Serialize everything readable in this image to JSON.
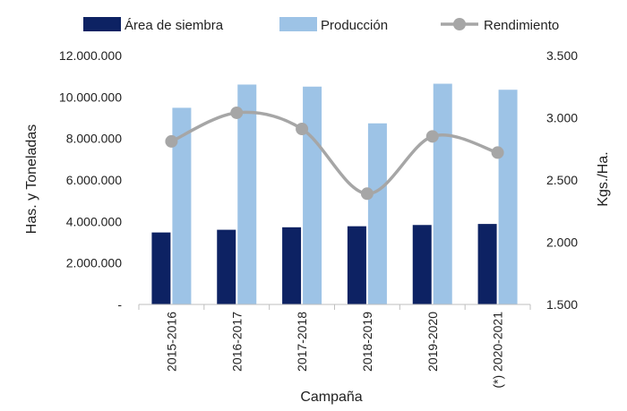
{
  "chart_data": {
    "type": "bar+line",
    "categories": [
      "2015-2016",
      "2016-2017",
      "2017-2018",
      "2018-2019",
      "2019-2020",
      "(*) 2020-2021"
    ],
    "series": [
      {
        "name": "Área de siembra",
        "kind": "bar",
        "axis": "left",
        "color": "#0d2263",
        "values": [
          3470000,
          3600000,
          3720000,
          3770000,
          3830000,
          3880000
        ]
      },
      {
        "name": "Producción",
        "kind": "bar",
        "axis": "left",
        "color": "#9dc3e6",
        "values": [
          9480000,
          10600000,
          10500000,
          8730000,
          10640000,
          10350000
        ]
      },
      {
        "name": "Rendimiento",
        "kind": "line",
        "axis": "right",
        "color": "#a6a6a6",
        "values": [
          2810,
          3040,
          2910,
          2390,
          2850,
          2720
        ]
      }
    ],
    "xlabel": "Campaña",
    "ylabel": "Has. y Toneladas",
    "y2label": "Kgs./Ha.",
    "ylim": [
      0,
      12000000
    ],
    "y2lim": [
      1500,
      3500
    ],
    "yticks": [
      0,
      2000000,
      4000000,
      6000000,
      8000000,
      10000000,
      12000000
    ],
    "ytick_labels": [
      "-",
      "2.000.000",
      "4.000.000",
      "6.000.000",
      "8.000.000",
      "10.000.000",
      "12.000.000"
    ],
    "y2ticks": [
      1500,
      2000,
      2500,
      3000,
      3500
    ],
    "y2tick_labels": [
      "1.500",
      "2.000",
      "2.500",
      "3.000",
      "3.500"
    ],
    "legend_position": "top",
    "grid": false
  }
}
